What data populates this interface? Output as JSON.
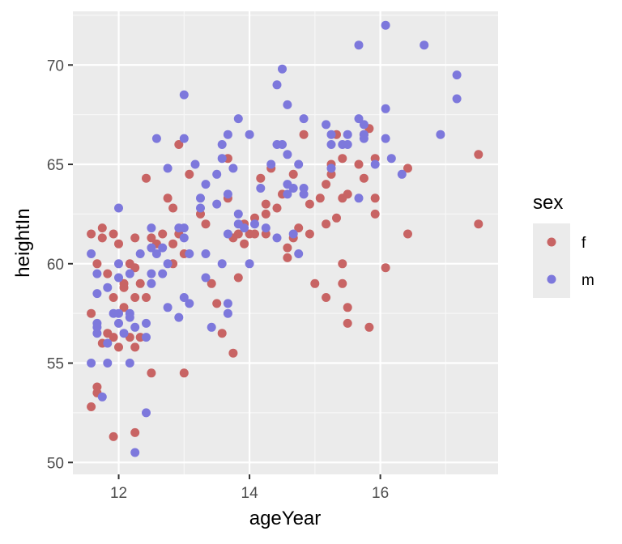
{
  "chart_data": {
    "type": "scatter",
    "xlabel": "ageYear",
    "ylabel": "heightIn",
    "xlim": [
      11.3,
      17.8
    ],
    "ylim": [
      49.4,
      72.7
    ],
    "xticks": [
      12,
      14,
      16
    ],
    "yticks": [
      50,
      55,
      60,
      65,
      70
    ],
    "xtick_labels": [
      "12",
      "14",
      "16"
    ],
    "ytick_labels": [
      "50",
      "55",
      "60",
      "65",
      "70"
    ],
    "grid": true,
    "legend": {
      "title": "sex",
      "position": "right"
    },
    "series": [
      {
        "name": "f",
        "color": "#C86464",
        "points": [
          [
            11.58,
            57.5
          ],
          [
            11.58,
            61.5
          ],
          [
            11.58,
            52.8
          ],
          [
            11.67,
            53.8
          ],
          [
            11.67,
            60.0
          ],
          [
            11.67,
            53.5
          ],
          [
            11.75,
            61.8
          ],
          [
            11.75,
            61.3
          ],
          [
            11.75,
            56.0
          ],
          [
            11.83,
            56.5
          ],
          [
            11.83,
            59.5
          ],
          [
            11.92,
            51.3
          ],
          [
            11.92,
            61.5
          ],
          [
            11.92,
            58.3
          ],
          [
            11.92,
            56.3
          ],
          [
            12.0,
            61.0
          ],
          [
            12.0,
            55.8
          ],
          [
            12.08,
            57.8
          ],
          [
            12.08,
            59.0
          ],
          [
            12.08,
            58.8
          ],
          [
            12.17,
            60.0
          ],
          [
            12.17,
            56.3
          ],
          [
            12.25,
            51.5
          ],
          [
            12.25,
            61.3
          ],
          [
            12.25,
            59.8
          ],
          [
            12.25,
            58.3
          ],
          [
            12.25,
            55.8
          ],
          [
            12.33,
            59.0
          ],
          [
            12.33,
            56.3
          ],
          [
            12.42,
            64.3
          ],
          [
            12.42,
            58.3
          ],
          [
            12.5,
            61.3
          ],
          [
            12.5,
            54.5
          ],
          [
            12.58,
            61.0
          ],
          [
            12.67,
            61.5
          ],
          [
            12.75,
            63.3
          ],
          [
            12.83,
            62.8
          ],
          [
            12.83,
            61.0
          ],
          [
            12.83,
            60.0
          ],
          [
            12.92,
            66.0
          ],
          [
            12.92,
            61.5
          ],
          [
            13.0,
            60.5
          ],
          [
            13.0,
            54.5
          ],
          [
            13.08,
            64.5
          ],
          [
            13.25,
            62.5
          ],
          [
            13.33,
            62.0
          ],
          [
            13.42,
            59.0
          ],
          [
            13.5,
            58.0
          ],
          [
            13.58,
            56.5
          ],
          [
            13.67,
            65.3
          ],
          [
            13.67,
            63.3
          ],
          [
            13.75,
            61.3
          ],
          [
            13.75,
            55.5
          ],
          [
            13.83,
            61.5
          ],
          [
            13.83,
            59.3
          ],
          [
            13.92,
            62.0
          ],
          [
            13.92,
            61.0
          ],
          [
            14.0,
            61.5
          ],
          [
            14.08,
            62.3
          ],
          [
            14.08,
            61.5
          ],
          [
            14.17,
            64.3
          ],
          [
            14.25,
            63.0
          ],
          [
            14.25,
            62.5
          ],
          [
            14.25,
            61.5
          ],
          [
            14.33,
            64.8
          ],
          [
            14.42,
            62.8
          ],
          [
            14.5,
            63.5
          ],
          [
            14.58,
            60.8
          ],
          [
            14.58,
            60.3
          ],
          [
            14.67,
            64.5
          ],
          [
            14.67,
            61.3
          ],
          [
            14.75,
            61.8
          ],
          [
            14.83,
            66.5
          ],
          [
            14.92,
            63.0
          ],
          [
            14.92,
            61.5
          ],
          [
            15.0,
            59.0
          ],
          [
            15.08,
            63.3
          ],
          [
            15.17,
            64.0
          ],
          [
            15.17,
            62.0
          ],
          [
            15.17,
            58.3
          ],
          [
            15.25,
            65.0
          ],
          [
            15.25,
            64.5
          ],
          [
            15.33,
            66.5
          ],
          [
            15.33,
            62.3
          ],
          [
            15.42,
            65.3
          ],
          [
            15.42,
            63.3
          ],
          [
            15.42,
            60.0
          ],
          [
            15.42,
            59.0
          ],
          [
            15.5,
            63.5
          ],
          [
            15.5,
            57.8
          ],
          [
            15.5,
            57.0
          ],
          [
            15.67,
            65.0
          ],
          [
            15.75,
            66.5
          ],
          [
            15.75,
            64.3
          ],
          [
            15.83,
            66.8
          ],
          [
            15.83,
            56.8
          ],
          [
            15.92,
            65.3
          ],
          [
            15.92,
            63.3
          ],
          [
            15.92,
            62.5
          ],
          [
            16.08,
            59.8
          ],
          [
            16.42,
            64.8
          ],
          [
            16.42,
            61.5
          ],
          [
            17.5,
            65.5
          ],
          [
            17.5,
            62.0
          ]
        ]
      },
      {
        "name": "m",
        "color": "#7D78DC",
        "points": [
          [
            11.58,
            55.0
          ],
          [
            11.58,
            60.5
          ],
          [
            11.67,
            59.5
          ],
          [
            11.67,
            58.5
          ],
          [
            11.67,
            57.0
          ],
          [
            11.67,
            56.8
          ],
          [
            11.67,
            56.5
          ],
          [
            11.75,
            53.3
          ],
          [
            11.83,
            58.8
          ],
          [
            11.83,
            55.0
          ],
          [
            11.83,
            56.0
          ],
          [
            11.92,
            57.5
          ],
          [
            12.0,
            62.8
          ],
          [
            12.0,
            60.0
          ],
          [
            12.0,
            59.3
          ],
          [
            12.0,
            57.5
          ],
          [
            12.0,
            57.0
          ],
          [
            12.08,
            56.5
          ],
          [
            12.17,
            59.5
          ],
          [
            12.17,
            57.5
          ],
          [
            12.17,
            57.3
          ],
          [
            12.17,
            55.0
          ],
          [
            12.25,
            50.5
          ],
          [
            12.25,
            56.8
          ],
          [
            12.33,
            60.5
          ],
          [
            12.42,
            57.0
          ],
          [
            12.42,
            56.3
          ],
          [
            12.42,
            52.5
          ],
          [
            12.5,
            61.8
          ],
          [
            12.5,
            60.8
          ],
          [
            12.5,
            59.5
          ],
          [
            12.5,
            59.0
          ],
          [
            12.58,
            66.3
          ],
          [
            12.58,
            60.5
          ],
          [
            12.67,
            59.5
          ],
          [
            12.67,
            60.8
          ],
          [
            12.75,
            64.8
          ],
          [
            12.75,
            60.0
          ],
          [
            12.75,
            57.8
          ],
          [
            12.92,
            61.8
          ],
          [
            12.92,
            57.3
          ],
          [
            13.0,
            68.5
          ],
          [
            13.0,
            66.3
          ],
          [
            13.0,
            61.8
          ],
          [
            13.0,
            61.3
          ],
          [
            13.0,
            58.3
          ],
          [
            13.08,
            60.5
          ],
          [
            13.08,
            58.0
          ],
          [
            13.17,
            65.0
          ],
          [
            13.25,
            63.3
          ],
          [
            13.25,
            62.8
          ],
          [
            13.33,
            64.0
          ],
          [
            13.33,
            60.5
          ],
          [
            13.33,
            59.3
          ],
          [
            13.42,
            56.8
          ],
          [
            13.5,
            64.5
          ],
          [
            13.5,
            63.0
          ],
          [
            13.58,
            66.0
          ],
          [
            13.58,
            65.3
          ],
          [
            13.58,
            60.0
          ],
          [
            13.67,
            66.5
          ],
          [
            13.67,
            63.5
          ],
          [
            13.67,
            61.5
          ],
          [
            13.67,
            58.0
          ],
          [
            13.67,
            57.5
          ],
          [
            13.75,
            64.8
          ],
          [
            13.83,
            67.3
          ],
          [
            13.83,
            62.5
          ],
          [
            13.83,
            62.0
          ],
          [
            13.92,
            61.8
          ],
          [
            14.0,
            66.5
          ],
          [
            14.0,
            60.0
          ],
          [
            14.08,
            62.0
          ],
          [
            14.17,
            63.8
          ],
          [
            14.25,
            61.8
          ],
          [
            14.33,
            65.0
          ],
          [
            14.42,
            69.0
          ],
          [
            14.42,
            66.0
          ],
          [
            14.42,
            61.3
          ],
          [
            14.5,
            69.8
          ],
          [
            14.5,
            66.0
          ],
          [
            14.58,
            68.0
          ],
          [
            14.58,
            65.5
          ],
          [
            14.58,
            64.0
          ],
          [
            14.58,
            63.5
          ],
          [
            14.67,
            63.8
          ],
          [
            14.67,
            61.5
          ],
          [
            14.75,
            65.0
          ],
          [
            14.75,
            60.5
          ],
          [
            14.83,
            67.3
          ],
          [
            14.83,
            63.5
          ],
          [
            14.83,
            63.8
          ],
          [
            15.17,
            67.0
          ],
          [
            15.25,
            66.5
          ],
          [
            15.25,
            66.0
          ],
          [
            15.25,
            64.8
          ],
          [
            15.42,
            66.0
          ],
          [
            15.5,
            66.5
          ],
          [
            15.5,
            66.0
          ],
          [
            15.67,
            71.0
          ],
          [
            15.67,
            67.3
          ],
          [
            15.67,
            63.3
          ],
          [
            15.75,
            67.0
          ],
          [
            15.75,
            66.3
          ],
          [
            15.75,
            66.5
          ],
          [
            15.92,
            65.0
          ],
          [
            16.08,
            72.0
          ],
          [
            16.08,
            67.8
          ],
          [
            16.08,
            66.3
          ],
          [
            16.17,
            65.3
          ],
          [
            16.33,
            64.5
          ],
          [
            16.67,
            71.0
          ],
          [
            16.92,
            66.5
          ],
          [
            17.17,
            69.5
          ],
          [
            17.17,
            68.3
          ]
        ]
      }
    ]
  }
}
